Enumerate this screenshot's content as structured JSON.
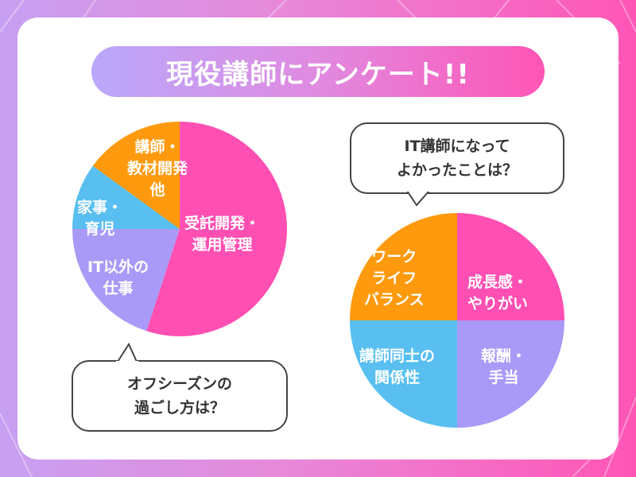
{
  "title": "現役講師にアンケート!!",
  "colors": {
    "pink": "#ff4fb3",
    "orange": "#ff9a0e",
    "blue": "#58bff0",
    "purple": "#a99af8"
  },
  "chart_data": [
    {
      "type": "pie",
      "title": "オフシーズンの\n過ごし方は？",
      "categories": [
        "受託開発・\n運用管理",
        "IT以外の\n仕事",
        "家事・\n育児",
        "講師・\n教材開発\n他"
      ],
      "values": [
        55,
        20,
        10,
        15
      ],
      "colors": [
        "#ff4fb3",
        "#a99af8",
        "#58bff0",
        "#ff9a0e"
      ]
    },
    {
      "type": "pie",
      "title": "IT講師になって\nよかったことは？",
      "categories": [
        "成長感・\nやりがい",
        "報酬・\n手当",
        "講師同士の\n関係性",
        "ワーク\nライフ\nバランス"
      ],
      "values": [
        25,
        25,
        25,
        25
      ],
      "colors": [
        "#ff4fb3",
        "#a99af8",
        "#58bff0",
        "#ff9a0e"
      ]
    }
  ]
}
